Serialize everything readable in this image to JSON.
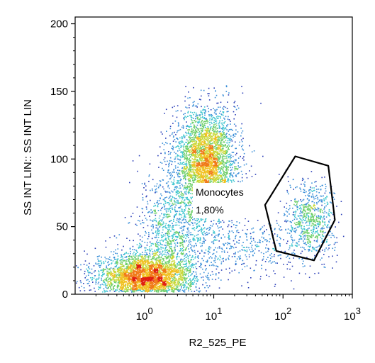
{
  "chart_data": {
    "type": "scatter",
    "title": "",
    "xlabel": "R2_525_PE",
    "ylabel": "SS INT LIN:: SS INT LIN",
    "x_scale": "log",
    "xlim": [
      0.1,
      1000
    ],
    "ylim": [
      0,
      205
    ],
    "x_ticks": [
      {
        "value": 1,
        "base": "10",
        "exp": "0"
      },
      {
        "value": 10,
        "base": "10",
        "exp": "1"
      },
      {
        "value": 100,
        "base": "10",
        "exp": "2"
      },
      {
        "value": 1000,
        "base": "10",
        "exp": "3"
      }
    ],
    "y_ticks": [
      {
        "value": 0,
        "label": "0"
      },
      {
        "value": 50,
        "label": "50"
      },
      {
        "value": 100,
        "label": "100"
      },
      {
        "value": 150,
        "label": "150"
      },
      {
        "value": 200,
        "label": "200"
      }
    ],
    "density_colormap": [
      "#2b3fb8",
      "#3a8fd8",
      "#3fc6d0",
      "#6fcf6a",
      "#c8d838",
      "#f0c020",
      "#f07a18",
      "#e01e10"
    ],
    "populations": [
      {
        "x_center": 1.0,
        "y_center": 13,
        "log_spread_x": 0.35,
        "spread_y": 9,
        "weight": 0.36
      },
      {
        "x_center": 7.5,
        "y_center": 98,
        "log_spread_x": 0.22,
        "spread_y": 20,
        "weight": 0.38
      },
      {
        "x_center": 2.5,
        "y_center": 45,
        "log_spread_x": 0.25,
        "spread_y": 25,
        "weight": 0.12
      },
      {
        "x_center": 20,
        "y_center": 35,
        "log_spread_x": 0.55,
        "spread_y": 12,
        "weight": 0.06
      },
      {
        "x_center": 250,
        "y_center": 55,
        "log_spread_x": 0.18,
        "spread_y": 14,
        "weight": 0.08
      }
    ],
    "gates": [
      {
        "name": "Monocytes",
        "percent": "1,80%",
        "polygon": [
          [
            150,
            102
          ],
          [
            450,
            95
          ],
          [
            560,
            55
          ],
          [
            280,
            25
          ],
          [
            80,
            32
          ],
          [
            55,
            66
          ]
        ]
      }
    ]
  }
}
